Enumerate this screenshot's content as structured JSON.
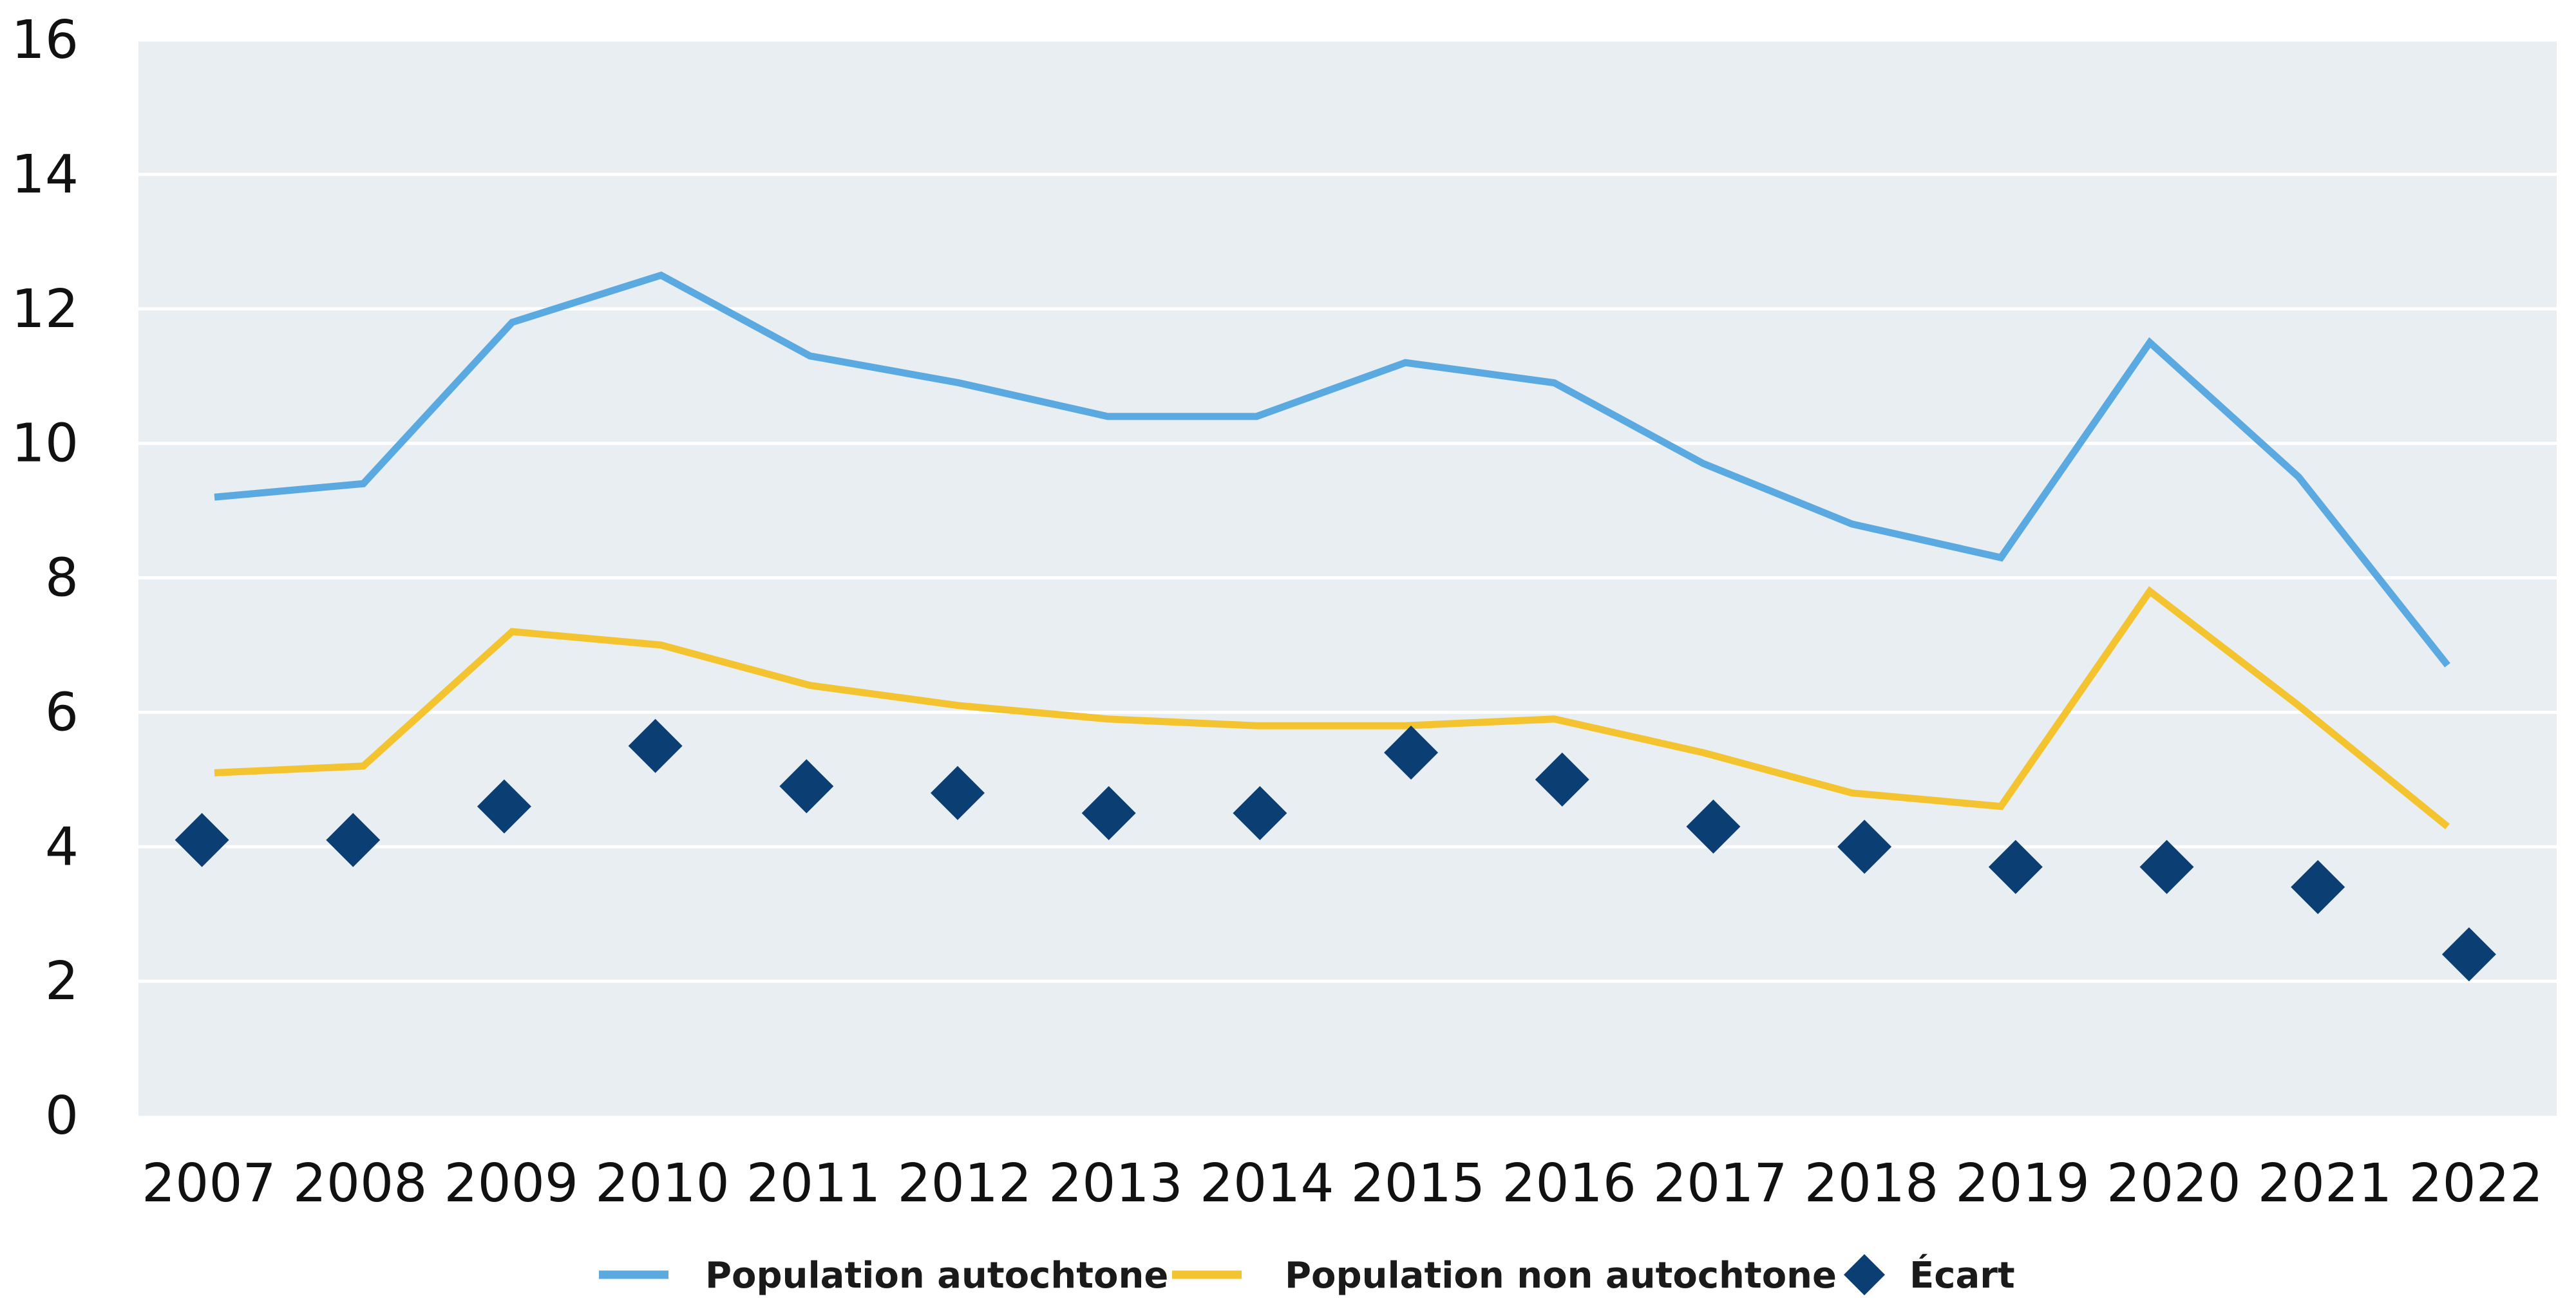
{
  "chart_data": {
    "type": "line",
    "categories": [
      "2007",
      "2008",
      "2009",
      "2010",
      "2011",
      "2012",
      "2013",
      "2014",
      "2015",
      "2016",
      "2017",
      "2018",
      "2019",
      "2020",
      "2021",
      "2022"
    ],
    "ylim": [
      0,
      16
    ],
    "y_ticks": [
      0,
      2,
      4,
      6,
      8,
      10,
      12,
      14,
      16
    ],
    "grid": true,
    "legend_position": "bottom",
    "series": [
      {
        "name": "Population autochtone",
        "mark": "line",
        "color": "#5aa9e0",
        "values": [
          9.2,
          9.4,
          11.8,
          12.5,
          11.3,
          10.9,
          10.4,
          10.4,
          11.2,
          10.9,
          9.7,
          8.8,
          8.3,
          11.5,
          9.5,
          6.7
        ]
      },
      {
        "name": "Population non autochtone",
        "mark": "line",
        "color": "#f4c430",
        "values": [
          5.1,
          5.2,
          7.2,
          7.0,
          6.4,
          6.1,
          5.9,
          5.8,
          5.8,
          5.9,
          5.4,
          4.8,
          4.6,
          7.8,
          6.1,
          4.3
        ]
      },
      {
        "name": "Écart",
        "mark": "diamond",
        "color": "#0b3f73",
        "values": [
          4.1,
          4.1,
          4.6,
          5.5,
          4.9,
          4.8,
          4.5,
          4.5,
          5.4,
          5.0,
          4.3,
          4.0,
          3.7,
          3.7,
          3.4,
          2.4
        ]
      }
    ],
    "colors": {
      "plot_background": "#e8eef1",
      "gridline": "#ffffff"
    }
  }
}
